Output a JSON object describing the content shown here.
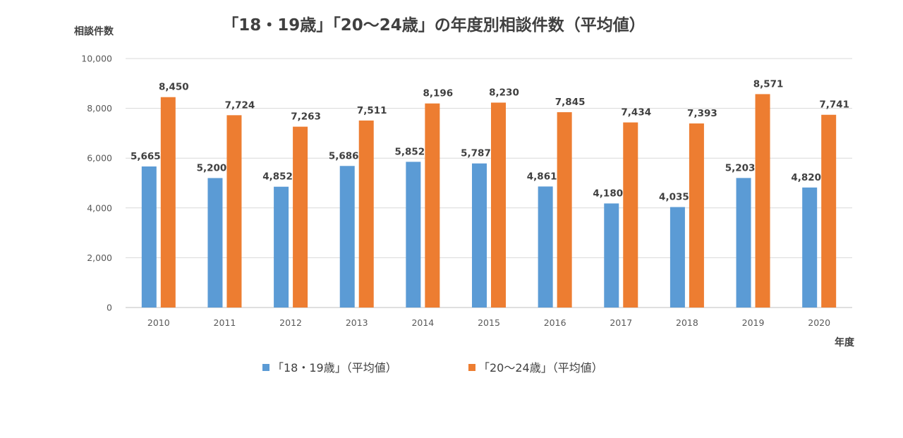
{
  "chart_data": {
    "type": "bar",
    "title": "「18・19歳」「20～24歳」の年度別相談件数（平均値）",
    "ylabel": "相談件数",
    "xlabel": "年度",
    "ylim": [
      0,
      10000
    ],
    "yticks": [
      "0",
      "2,000",
      "4,000",
      "6,000",
      "8,000",
      "10,000"
    ],
    "ytick_values": [
      0,
      2000,
      4000,
      6000,
      8000,
      10000
    ],
    "grid": true,
    "legend_position": "bottom",
    "categories": [
      "2010",
      "2011",
      "2012",
      "2013",
      "2014",
      "2015",
      "2016",
      "2017",
      "2018",
      "2019",
      "2020"
    ],
    "series": [
      {
        "name": "「18・19歳」（平均値）",
        "color": "#5b9bd5",
        "values": [
          5665,
          5200,
          4852,
          5686,
          5852,
          5787,
          4861,
          4180,
          4035,
          5203,
          4820
        ],
        "labels": [
          "5,665",
          "5,200",
          "4,852",
          "5,686",
          "5,852",
          "5,787",
          "4,861",
          "4,180",
          "4,035",
          "5,203",
          "4,820"
        ]
      },
      {
        "name": "「20～24歳」（平均値）",
        "color": "#ed7d31",
        "values": [
          8450,
          7724,
          7263,
          7511,
          8196,
          8230,
          7845,
          7434,
          7393,
          8571,
          7741
        ],
        "labels": [
          "8,450",
          "7,724",
          "7,263",
          "7,511",
          "8,196",
          "8,230",
          "7,845",
          "7,434",
          "7,393",
          "8,571",
          "7,741"
        ]
      }
    ]
  }
}
